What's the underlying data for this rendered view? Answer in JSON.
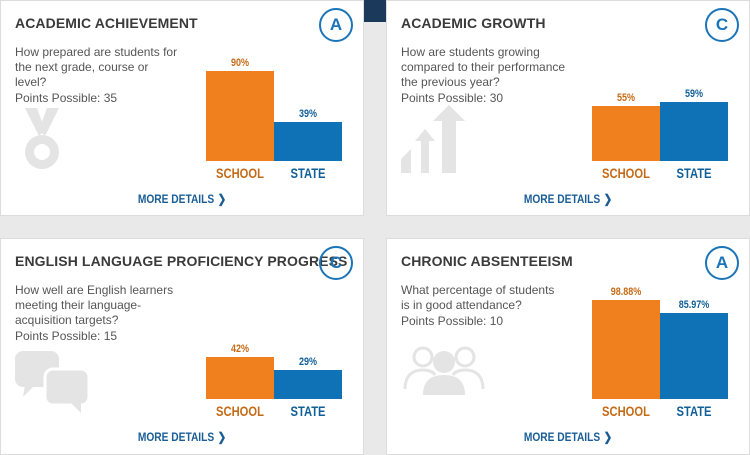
{
  "colors": {
    "school": "#f0801e",
    "state": "#0f72b6",
    "accent": "#1a75b8"
  },
  "bar_labels": {
    "school": "SCHOOL",
    "state": "STATE"
  },
  "more_details": "MORE DETAILS",
  "cards": [
    {
      "title": "ACADEMIC ACHIEVEMENT",
      "grade": "A",
      "question": "How prepared are students for the next grade, course or level?",
      "points": "Points Possible: 35",
      "icon": "medal-icon",
      "school_value_text": "90%",
      "state_value_text": "39%"
    },
    {
      "title": "ACADEMIC GROWTH",
      "grade": "C",
      "question": "How are students growing compared to their performance the previous year?",
      "points": "Points Possible: 30",
      "icon": "growth-arrows-icon",
      "school_value_text": "55%",
      "state_value_text": "59%"
    },
    {
      "title": "ENGLISH LANGUAGE PROFICIENCY PROGRESS",
      "grade": "C",
      "question": "How well are English learners meeting their language-acquisition targets?",
      "points": "Points Possible: 15",
      "icon": "speech-bubbles-icon",
      "school_value_text": "42%",
      "state_value_text": "29%"
    },
    {
      "title": "CHRONIC ABSENTEEISM",
      "grade": "A",
      "question": "What percentage of students is in good attendance?",
      "points": "Points Possible: 10",
      "icon": "people-icon",
      "school_value_text": "98.88%",
      "state_value_text": "85.97%"
    }
  ],
  "chart_data": [
    {
      "type": "bar",
      "categories": [
        "SCHOOL",
        "STATE"
      ],
      "values": [
        90,
        39
      ],
      "ylim": [
        0,
        100
      ]
    },
    {
      "type": "bar",
      "categories": [
        "SCHOOL",
        "STATE"
      ],
      "values": [
        55,
        59
      ],
      "ylim": [
        0,
        100
      ]
    },
    {
      "type": "bar",
      "categories": [
        "SCHOOL",
        "STATE"
      ],
      "values": [
        42,
        29
      ],
      "ylim": [
        0,
        100
      ]
    },
    {
      "type": "bar",
      "categories": [
        "SCHOOL",
        "STATE"
      ],
      "values": [
        98.88,
        85.97
      ],
      "ylim": [
        0,
        100
      ]
    }
  ]
}
